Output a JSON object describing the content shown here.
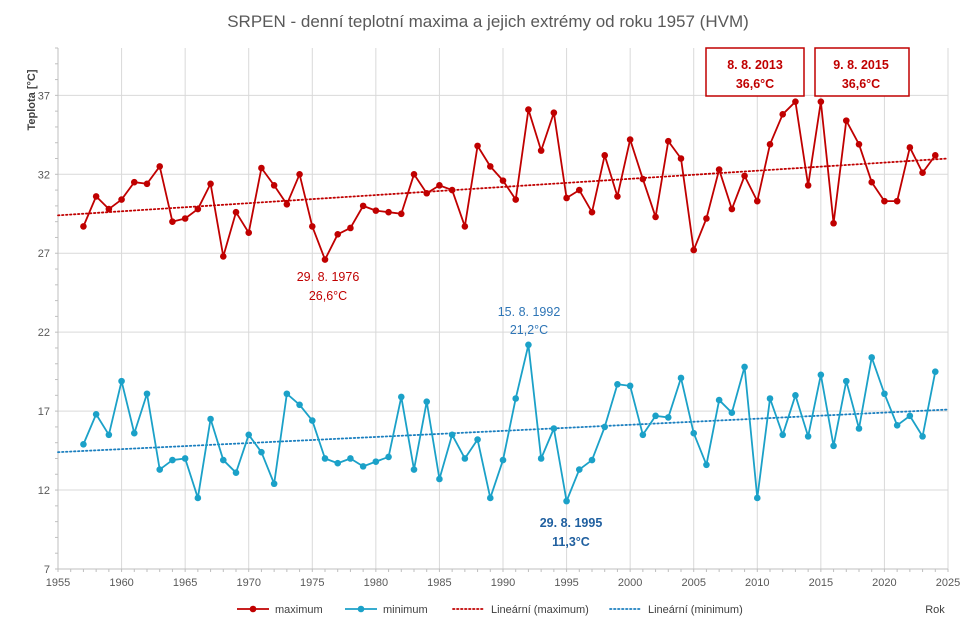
{
  "chart_data": {
    "type": "line",
    "title": "SRPEN - denní teplotní maxima a jejich extrémy od roku 1957 (HVM)",
    "ylabel": "Teplota [°C]",
    "xlabel": "Rok",
    "xlim": [
      1955,
      2025
    ],
    "ylim": [
      7,
      40
    ],
    "x_ticks": [
      1955,
      1960,
      1965,
      1970,
      1975,
      1980,
      1985,
      1990,
      1995,
      2000,
      2005,
      2010,
      2015,
      2020,
      2025
    ],
    "y_ticks": [
      7,
      12,
      17,
      22,
      27,
      32,
      37
    ],
    "grid": true,
    "legend_position": "bottom",
    "x": [
      1957,
      1958,
      1959,
      1960,
      1961,
      1962,
      1963,
      1964,
      1965,
      1966,
      1967,
      1968,
      1969,
      1970,
      1971,
      1972,
      1973,
      1974,
      1975,
      1976,
      1977,
      1978,
      1979,
      1980,
      1981,
      1982,
      1983,
      1984,
      1985,
      1986,
      1987,
      1988,
      1989,
      1990,
      1991,
      1992,
      1993,
      1994,
      1995,
      1996,
      1997,
      1998,
      1999,
      2000,
      2001,
      2002,
      2003,
      2004,
      2005,
      2006,
      2007,
      2008,
      2009,
      2010,
      2011,
      2012,
      2013,
      2014,
      2015,
      2016,
      2017,
      2018,
      2019,
      2020,
      2021,
      2022,
      2023,
      2024
    ],
    "series": [
      {
        "name": "maximum",
        "color": "#C00000",
        "values": [
          28.7,
          30.6,
          29.8,
          30.4,
          31.5,
          31.4,
          32.5,
          29.0,
          29.2,
          29.8,
          31.4,
          26.8,
          29.6,
          28.3,
          32.4,
          31.3,
          30.1,
          32.0,
          28.7,
          26.6,
          28.2,
          28.6,
          30.0,
          29.7,
          29.6,
          29.5,
          32.0,
          30.8,
          31.3,
          31.0,
          28.7,
          33.8,
          32.5,
          31.6,
          30.4,
          36.1,
          33.5,
          35.9,
          30.5,
          31.0,
          29.6,
          33.2,
          30.6,
          34.2,
          31.7,
          29.3,
          34.1,
          33.0,
          27.2,
          29.2,
          32.3,
          29.8,
          31.9,
          30.3,
          33.9,
          35.8,
          36.6,
          31.3,
          36.6,
          28.9,
          35.4,
          33.9,
          31.5,
          30.3,
          30.3,
          33.7,
          32.1,
          33.2
        ]
      },
      {
        "name": "minimum",
        "color": "#1BA1C8",
        "values": [
          14.9,
          16.8,
          15.5,
          18.9,
          15.6,
          18.1,
          13.3,
          13.9,
          14.0,
          11.5,
          16.5,
          13.9,
          13.1,
          15.5,
          14.4,
          12.4,
          18.1,
          17.4,
          16.4,
          14.0,
          13.7,
          14.0,
          13.5,
          13.8,
          14.1,
          17.9,
          13.3,
          17.6,
          12.7,
          15.5,
          14.0,
          15.2,
          11.5,
          13.9,
          17.8,
          21.2,
          14.0,
          15.9,
          11.3,
          13.3,
          13.9,
          16.0,
          18.7,
          18.6,
          15.5,
          16.7,
          16.6,
          19.1,
          15.6,
          13.6,
          17.7,
          16.9,
          19.8,
          11.5,
          17.8,
          15.5,
          18.0,
          15.4,
          19.3,
          14.8,
          18.9,
          15.9,
          20.4,
          18.1,
          16.1,
          16.7,
          15.4,
          19.5
        ]
      }
    ],
    "trendlines": [
      {
        "name": "Lineární (maximum)",
        "color": "#C00000",
        "from": [
          1955,
          29.4
        ],
        "to": [
          2025,
          33.0
        ]
      },
      {
        "name": "Lineární (minimum)",
        "color": "#1B7FBF",
        "from": [
          1955,
          14.4
        ],
        "to": [
          2025,
          17.1
        ]
      }
    ],
    "annotations": [
      {
        "line1": "8. 8. 2013",
        "line2": "36,6°C",
        "color": "#C00000",
        "boxed": true,
        "bold": true
      },
      {
        "line1": "9. 8. 2015",
        "line2": "36,6°C",
        "color": "#C00000",
        "boxed": true,
        "bold": true
      },
      {
        "line1": "29. 8. 1976",
        "line2": "26,6°C",
        "color": "#C00000",
        "boxed": false,
        "bold": false
      },
      {
        "line1": "15. 8. 1992",
        "line2": "21,2°C",
        "color": "#2E75B6",
        "boxed": false,
        "bold": false
      },
      {
        "line1": "29. 8. 1995",
        "line2": "11,3°C",
        "color": "#1F5F9F",
        "boxed": false,
        "bold": true
      }
    ],
    "legend": [
      "maximum",
      "minimum",
      "Lineární (maximum)",
      "Lineární (minimum)"
    ]
  }
}
